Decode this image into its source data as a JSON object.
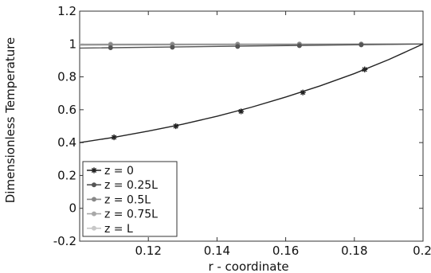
{
  "chart_data": {
    "type": "line",
    "title": "",
    "xlabel": "r - coordinate",
    "ylabel": "Dimensionless Temperature",
    "xlim": [
      0.1,
      0.2
    ],
    "ylim": [
      -0.2,
      1.2
    ],
    "x_ticks": [
      "0.12",
      "0.14",
      "0.16",
      "0.18",
      "0.2"
    ],
    "y_ticks": [
      "-0.2",
      "0",
      "0.2",
      "0.4",
      "0.6",
      "0.8",
      "1",
      "1.2"
    ],
    "grid": false,
    "legend_position": "bottom-left",
    "series": [
      {
        "name": "z = 0",
        "color": "#222222",
        "marker": "asterisk",
        "x": [
          0.1,
          0.11,
          0.12,
          0.13,
          0.14,
          0.15,
          0.16,
          0.17,
          0.18,
          0.19,
          0.2
        ],
        "y": [
          0.4,
          0.432,
          0.47,
          0.512,
          0.56,
          0.615,
          0.677,
          0.745,
          0.82,
          0.905,
          1.0
        ],
        "marker_x": [
          0.11,
          0.128,
          0.147,
          0.165,
          0.183
        ],
        "marker_y": [
          0.432,
          0.5,
          0.59,
          0.705,
          0.845
        ]
      },
      {
        "name": "z = 0.25L",
        "color": "#555555",
        "marker": "circle",
        "x": [
          0.1,
          0.15,
          0.2
        ],
        "y": [
          0.975,
          0.988,
          1.0
        ],
        "marker_x": [
          0.109,
          0.127,
          0.146,
          0.164,
          0.182
        ],
        "marker_y": [
          0.977,
          0.98,
          0.985,
          0.99,
          0.995
        ]
      },
      {
        "name": "z = 0.5L",
        "color": "#888888",
        "marker": "circle",
        "x": [
          0.1,
          0.2
        ],
        "y": [
          0.994,
          1.0
        ],
        "marker_x": [
          0.109,
          0.127,
          0.146,
          0.164,
          0.182
        ],
        "marker_y": [
          0.995,
          0.996,
          0.997,
          0.998,
          0.999
        ]
      },
      {
        "name": "z = 0.75L",
        "color": "#a8a8a8",
        "marker": "circle",
        "x": [
          0.1,
          0.2
        ],
        "y": [
          0.998,
          1.0
        ],
        "marker_x": [
          0.109,
          0.127,
          0.146,
          0.164,
          0.182
        ],
        "marker_y": [
          0.998,
          0.999,
          0.999,
          1.0,
          1.0
        ]
      },
      {
        "name": "z = L",
        "color": "#c8c8c8",
        "marker": "circle",
        "x": [
          0.1,
          0.2
        ],
        "y": [
          1.0,
          1.0
        ],
        "marker_x": [
          0.109,
          0.127,
          0.146,
          0.164,
          0.182
        ],
        "marker_y": [
          1.0,
          1.0,
          1.0,
          1.0,
          1.0
        ]
      }
    ]
  }
}
